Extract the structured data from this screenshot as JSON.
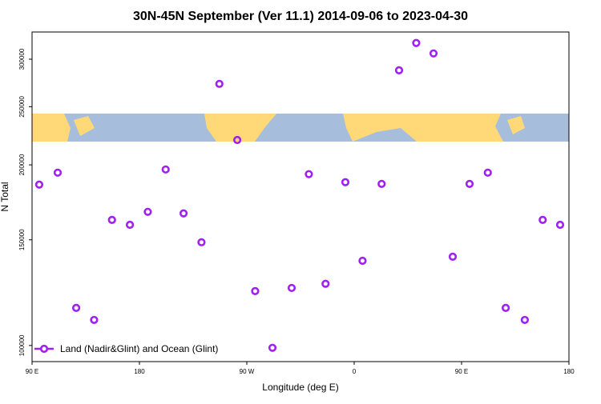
{
  "chart_data": {
    "type": "scatter",
    "title": "30N-45N September (Ver 11.1)   2014-09-06 to 2023-04-30",
    "x_label": "Longitude (deg E)",
    "y_label": "N Total",
    "x": [
      96,
      111.5,
      127,
      142,
      157,
      172,
      187,
      202,
      217,
      232,
      247,
      262,
      277,
      291.5,
      307.6,
      322,
      336,
      352.6,
      367,
      383,
      397.6,
      412,
      426.5,
      442.6,
      456.7,
      472,
      487,
      503,
      518,
      532.6
    ],
    "series": [
      {
        "name": "Land (Nadir&Glint) and Ocean (Glint)",
        "color": "#a020f0",
        "values": [
          185400,
          194100,
          115500,
          110300,
          161900,
          158900,
          167000,
          196500,
          166000,
          148600,
          272900,
          220000,
          123200,
          99100,
          124700,
          193000,
          126700,
          187100,
          138400,
          185900,
          287500,
          319200,
          306700,
          140600,
          185900,
          194100,
          115500,
          110300,
          161900,
          158900
        ]
      }
    ],
    "xlim": [
      90,
      540
    ],
    "xticks": [
      {
        "value": 90,
        "label": "90 E"
      },
      {
        "value": 180,
        "label": "180"
      },
      {
        "value": 270,
        "label": "90 W"
      },
      {
        "value": 360,
        "label": "0"
      },
      {
        "value": 450,
        "label": "90 E"
      },
      {
        "value": 540,
        "label": "180"
      }
    ],
    "ylim": [
      94000,
      333000
    ],
    "yticks": [
      100000,
      150000,
      200000,
      250000,
      300000
    ],
    "ylog": true,
    "legend": "bottomleft"
  }
}
